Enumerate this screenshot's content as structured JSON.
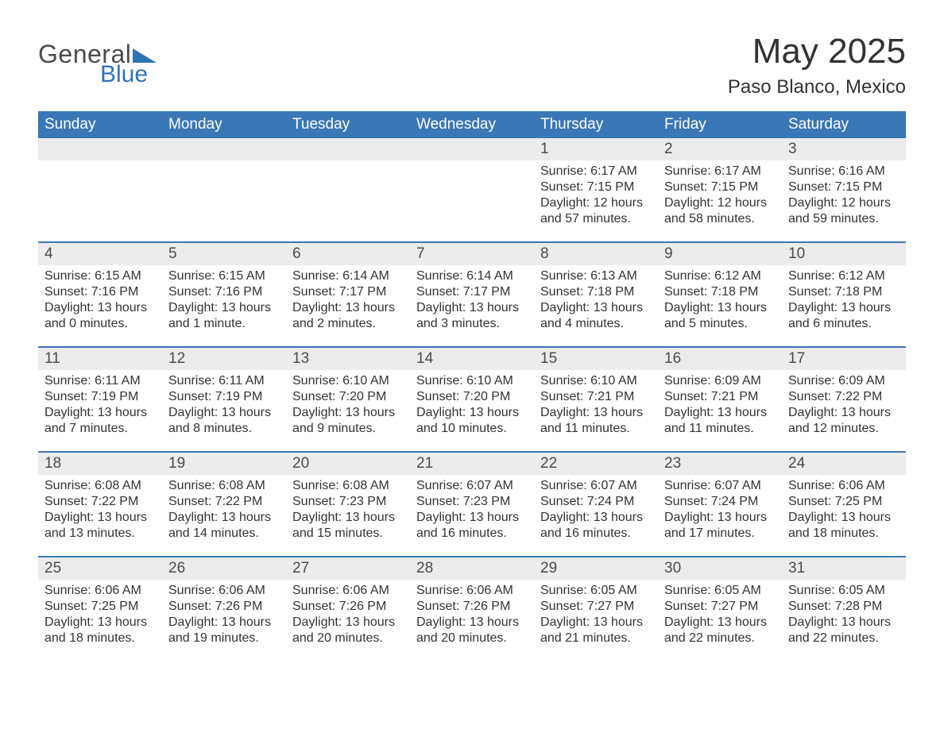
{
  "logo": {
    "text1": "General",
    "text2": "Blue",
    "icon_color": "#2f72b5"
  },
  "title": "May 2025",
  "location": "Paso Blanco, Mexico",
  "colors": {
    "header_bg": "#3a77b6",
    "header_text": "#ffffff",
    "band_bg": "#ececec",
    "text": "#333333",
    "rule": "#3a77b6"
  },
  "day_names": [
    "Sunday",
    "Monday",
    "Tuesday",
    "Wednesday",
    "Thursday",
    "Friday",
    "Saturday"
  ],
  "weeks": [
    [
      null,
      null,
      null,
      null,
      {
        "n": "1",
        "sunrise": "6:17 AM",
        "sunset": "7:15 PM",
        "daylight": "12 hours and 57 minutes."
      },
      {
        "n": "2",
        "sunrise": "6:17 AM",
        "sunset": "7:15 PM",
        "daylight": "12 hours and 58 minutes."
      },
      {
        "n": "3",
        "sunrise": "6:16 AM",
        "sunset": "7:15 PM",
        "daylight": "12 hours and 59 minutes."
      }
    ],
    [
      {
        "n": "4",
        "sunrise": "6:15 AM",
        "sunset": "7:16 PM",
        "daylight": "13 hours and 0 minutes."
      },
      {
        "n": "5",
        "sunrise": "6:15 AM",
        "sunset": "7:16 PM",
        "daylight": "13 hours and 1 minute."
      },
      {
        "n": "6",
        "sunrise": "6:14 AM",
        "sunset": "7:17 PM",
        "daylight": "13 hours and 2 minutes."
      },
      {
        "n": "7",
        "sunrise": "6:14 AM",
        "sunset": "7:17 PM",
        "daylight": "13 hours and 3 minutes."
      },
      {
        "n": "8",
        "sunrise": "6:13 AM",
        "sunset": "7:18 PM",
        "daylight": "13 hours and 4 minutes."
      },
      {
        "n": "9",
        "sunrise": "6:12 AM",
        "sunset": "7:18 PM",
        "daylight": "13 hours and 5 minutes."
      },
      {
        "n": "10",
        "sunrise": "6:12 AM",
        "sunset": "7:18 PM",
        "daylight": "13 hours and 6 minutes."
      }
    ],
    [
      {
        "n": "11",
        "sunrise": "6:11 AM",
        "sunset": "7:19 PM",
        "daylight": "13 hours and 7 minutes."
      },
      {
        "n": "12",
        "sunrise": "6:11 AM",
        "sunset": "7:19 PM",
        "daylight": "13 hours and 8 minutes."
      },
      {
        "n": "13",
        "sunrise": "6:10 AM",
        "sunset": "7:20 PM",
        "daylight": "13 hours and 9 minutes."
      },
      {
        "n": "14",
        "sunrise": "6:10 AM",
        "sunset": "7:20 PM",
        "daylight": "13 hours and 10 minutes."
      },
      {
        "n": "15",
        "sunrise": "6:10 AM",
        "sunset": "7:21 PM",
        "daylight": "13 hours and 11 minutes."
      },
      {
        "n": "16",
        "sunrise": "6:09 AM",
        "sunset": "7:21 PM",
        "daylight": "13 hours and 11 minutes."
      },
      {
        "n": "17",
        "sunrise": "6:09 AM",
        "sunset": "7:22 PM",
        "daylight": "13 hours and 12 minutes."
      }
    ],
    [
      {
        "n": "18",
        "sunrise": "6:08 AM",
        "sunset": "7:22 PM",
        "daylight": "13 hours and 13 minutes."
      },
      {
        "n": "19",
        "sunrise": "6:08 AM",
        "sunset": "7:22 PM",
        "daylight": "13 hours and 14 minutes."
      },
      {
        "n": "20",
        "sunrise": "6:08 AM",
        "sunset": "7:23 PM",
        "daylight": "13 hours and 15 minutes."
      },
      {
        "n": "21",
        "sunrise": "6:07 AM",
        "sunset": "7:23 PM",
        "daylight": "13 hours and 16 minutes."
      },
      {
        "n": "22",
        "sunrise": "6:07 AM",
        "sunset": "7:24 PM",
        "daylight": "13 hours and 16 minutes."
      },
      {
        "n": "23",
        "sunrise": "6:07 AM",
        "sunset": "7:24 PM",
        "daylight": "13 hours and 17 minutes."
      },
      {
        "n": "24",
        "sunrise": "6:06 AM",
        "sunset": "7:25 PM",
        "daylight": "13 hours and 18 minutes."
      }
    ],
    [
      {
        "n": "25",
        "sunrise": "6:06 AM",
        "sunset": "7:25 PM",
        "daylight": "13 hours and 18 minutes."
      },
      {
        "n": "26",
        "sunrise": "6:06 AM",
        "sunset": "7:26 PM",
        "daylight": "13 hours and 19 minutes."
      },
      {
        "n": "27",
        "sunrise": "6:06 AM",
        "sunset": "7:26 PM",
        "daylight": "13 hours and 20 minutes."
      },
      {
        "n": "28",
        "sunrise": "6:06 AM",
        "sunset": "7:26 PM",
        "daylight": "13 hours and 20 minutes."
      },
      {
        "n": "29",
        "sunrise": "6:05 AM",
        "sunset": "7:27 PM",
        "daylight": "13 hours and 21 minutes."
      },
      {
        "n": "30",
        "sunrise": "6:05 AM",
        "sunset": "7:27 PM",
        "daylight": "13 hours and 22 minutes."
      },
      {
        "n": "31",
        "sunrise": "6:05 AM",
        "sunset": "7:28 PM",
        "daylight": "13 hours and 22 minutes."
      }
    ]
  ],
  "labels": {
    "sunrise": "Sunrise:",
    "sunset": "Sunset:",
    "daylight": "Daylight:"
  }
}
